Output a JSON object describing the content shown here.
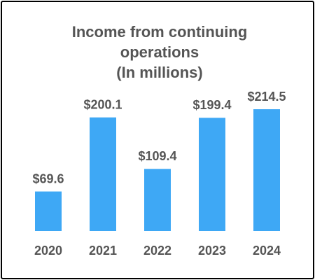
{
  "chart_data": {
    "type": "bar",
    "title": "Income from continuing operations",
    "subtitle": "(In millions)",
    "categories": [
      "2020",
      "2021",
      "2022",
      "2023",
      "2024"
    ],
    "values": [
      69.6,
      200.1,
      109.4,
      199.4,
      214.5
    ],
    "value_labels": [
      "$69.6",
      "$200.1",
      "$109.4",
      "$199.4",
      "$214.5"
    ],
    "color": "#3ea8f5"
  }
}
